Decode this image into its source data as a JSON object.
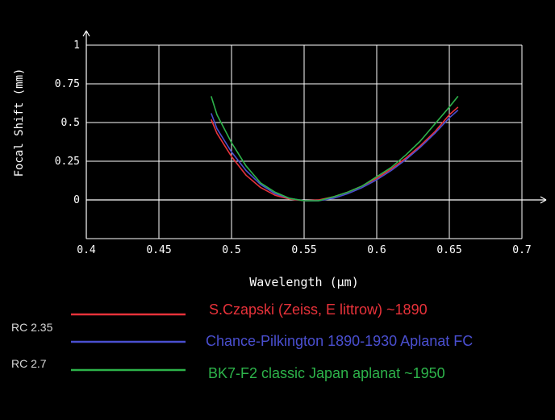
{
  "chart_data": {
    "type": "line",
    "xlabel": "Wavelength (µm)",
    "ylabel": "Focal Shift (mm)",
    "xlim": [
      0.4,
      0.7
    ],
    "ylim": [
      -0.25,
      1.0
    ],
    "grid": true,
    "x_ticks": [
      "0.4",
      "0.45",
      "0.5",
      "0.55",
      "0.6",
      "0.65",
      "0.7"
    ],
    "y_ticks": [
      "0",
      "0.25",
      "0.5",
      "0.75",
      "1"
    ],
    "series": [
      {
        "name": "S.Czapski (Zeiss, E littrow) ~1890",
        "color": "#e8323a",
        "x": [
          0.486,
          0.49,
          0.5,
          0.51,
          0.52,
          0.53,
          0.54,
          0.55,
          0.56,
          0.57,
          0.58,
          0.59,
          0.6,
          0.61,
          0.62,
          0.63,
          0.64,
          0.65,
          0.656
        ],
        "y": [
          0.52,
          0.43,
          0.28,
          0.16,
          0.08,
          0.03,
          0.005,
          -0.005,
          0.0,
          0.02,
          0.05,
          0.09,
          0.14,
          0.2,
          0.27,
          0.35,
          0.44,
          0.55,
          0.6
        ]
      },
      {
        "name": "Chance-Pilkington 1890-1930 Aplanat FC",
        "color": "#4a4fd0",
        "x": [
          0.486,
          0.49,
          0.5,
          0.51,
          0.52,
          0.53,
          0.54,
          0.55,
          0.56,
          0.57,
          0.58,
          0.59,
          0.6,
          0.61,
          0.62,
          0.63,
          0.64,
          0.65,
          0.656
        ],
        "y": [
          0.56,
          0.46,
          0.31,
          0.19,
          0.1,
          0.04,
          0.01,
          -0.005,
          -0.005,
          0.01,
          0.04,
          0.08,
          0.13,
          0.19,
          0.26,
          0.34,
          0.43,
          0.53,
          0.58
        ]
      },
      {
        "name": "BK7-F2 classic Japan aplanat ~1950",
        "color": "#2db34a",
        "x": [
          0.486,
          0.49,
          0.5,
          0.51,
          0.52,
          0.53,
          0.54,
          0.55,
          0.56,
          0.57,
          0.58,
          0.59,
          0.6,
          0.61,
          0.62,
          0.63,
          0.64,
          0.65,
          0.656
        ],
        "y": [
          0.67,
          0.55,
          0.37,
          0.22,
          0.11,
          0.05,
          0.01,
          -0.005,
          -0.005,
          0.02,
          0.05,
          0.09,
          0.15,
          0.21,
          0.29,
          0.38,
          0.49,
          0.6,
          0.67
        ]
      }
    ]
  },
  "legend": {
    "items": [
      {
        "label": "S.Czapski (Zeiss, E littrow) ~1890",
        "rc": "",
        "color": "#e8323a"
      },
      {
        "label": "Chance-Pilkington 1890-1930 Aplanat FC",
        "rc": "RC 2.35",
        "color": "#4a4fd0"
      },
      {
        "label": "BK7-F2 classic Japan aplanat ~1950",
        "rc": "RC 2.7",
        "color": "#2db34a"
      }
    ]
  }
}
